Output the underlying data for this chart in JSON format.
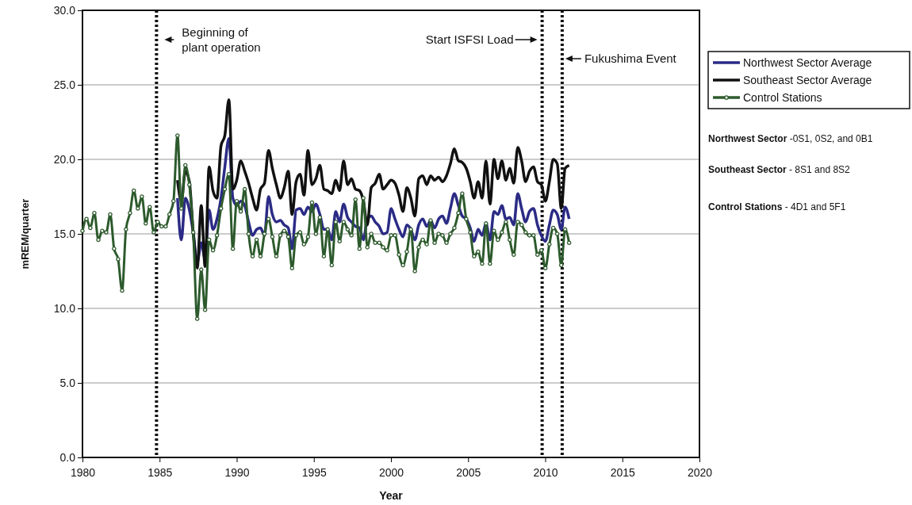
{
  "chart_data": {
    "type": "line",
    "xlabel": "Year",
    "ylabel": "mREM/quarter",
    "xlim": [
      1980,
      2020
    ],
    "xticks": [
      1980,
      1985,
      1990,
      1995,
      2000,
      2005,
      2010,
      2015,
      2020
    ],
    "ylim": [
      0,
      30
    ],
    "yticks": [
      {
        "value": 0,
        "label": "0.0"
      },
      {
        "value": 5,
        "label": "5.0"
      },
      {
        "value": 10,
        "label": "10.0"
      },
      {
        "value": 15,
        "label": "15.0"
      },
      {
        "value": 20,
        "label": "20.0"
      },
      {
        "value": 25,
        "label": "25.0"
      },
      {
        "value": 30,
        "label": "30.0"
      }
    ],
    "grid": "y",
    "legend": "top right",
    "marker": "circle",
    "line_style": "solid",
    "x": [
      1980.0,
      1980.26,
      1980.51,
      1980.77,
      1981.03,
      1981.28,
      1981.54,
      1981.8,
      1982.05,
      1982.31,
      1982.57,
      1982.82,
      1983.08,
      1983.33,
      1983.59,
      1983.85,
      1984.1,
      1984.36,
      1984.62,
      1984.87,
      1985.13,
      1985.39,
      1985.64,
      1985.9,
      1986.16,
      1986.41,
      1986.67,
      1986.93,
      1987.18,
      1987.44,
      1987.7,
      1987.95,
      1988.21,
      1988.46,
      1988.72,
      1988.98,
      1989.23,
      1989.49,
      1989.75,
      1990.0,
      1990.26,
      1990.52,
      1990.77,
      1991.03,
      1991.29,
      1991.54,
      1991.8,
      1992.06,
      1992.31,
      1992.57,
      1992.83,
      1993.08,
      1993.34,
      1993.59,
      1993.85,
      1994.11,
      1994.36,
      1994.62,
      1994.88,
      1995.13,
      1995.39,
      1995.65,
      1995.9,
      1996.16,
      1996.42,
      1996.67,
      1996.93,
      1997.19,
      1997.44,
      1997.7,
      1997.96,
      1998.21,
      1998.47,
      1998.72,
      1998.98,
      1999.24,
      1999.49,
      1999.75,
      2000.01,
      2000.26,
      2000.52,
      2000.78,
      2001.03,
      2001.29,
      2001.55,
      2001.8,
      2002.06,
      2002.32,
      2002.57,
      2002.83,
      2003.09,
      2003.34,
      2003.6,
      2003.85,
      2004.11,
      2004.37,
      2004.62,
      2004.88,
      2005.14,
      2005.39,
      2005.65,
      2005.91,
      2006.16,
      2006.42,
      2006.68,
      2006.93,
      2007.19,
      2007.45,
      2007.7,
      2007.96,
      2008.22,
      2008.47,
      2008.73,
      2008.98,
      2009.24,
      2009.5,
      2009.75,
      2010.01,
      2010.27,
      2010.52,
      2010.78,
      2011.04,
      2011.29,
      2011.55
    ],
    "series": [
      {
        "name": "Northwest Sector Average",
        "color": "#2b2b86",
        "marker": "none",
        "x": [
          1986.16,
          1986.41,
          1986.67,
          1986.93,
          1987.18,
          1987.44,
          1987.7,
          1987.95,
          1988.21,
          1988.46,
          1988.72,
          1988.98,
          1989.23,
          1989.49,
          1989.75,
          1990.0,
          1990.26,
          1990.52,
          1990.77,
          1991.03,
          1991.29,
          1991.54,
          1991.8,
          1992.06,
          1992.31,
          1992.57,
          1992.83,
          1993.08,
          1993.34,
          1993.59,
          1993.85,
          1994.11,
          1994.36,
          1994.62,
          1994.88,
          1995.13,
          1995.39,
          1995.65,
          1995.9,
          1996.16,
          1996.42,
          1996.67,
          1996.93,
          1997.19,
          1997.44,
          1997.7,
          1997.96,
          1998.21,
          1998.47,
          1998.72,
          1998.98,
          1999.24,
          1999.49,
          1999.75,
          2000.01,
          2000.26,
          2000.52,
          2000.78,
          2001.03,
          2001.29,
          2001.55,
          2001.8,
          2002.06,
          2002.32,
          2002.57,
          2002.83,
          2003.09,
          2003.34,
          2003.6,
          2003.85,
          2004.11,
          2004.37,
          2004.62,
          2004.88,
          2005.14,
          2005.39,
          2005.65,
          2005.91,
          2006.16,
          2006.42,
          2006.68,
          2006.93,
          2007.19,
          2007.45,
          2007.7,
          2007.96,
          2008.22,
          2008.47,
          2008.73,
          2008.98,
          2009.24,
          2009.5,
          2009.75,
          2010.01,
          2010.27,
          2010.52,
          2010.78,
          2011.04,
          2011.29,
          2011.55
        ],
        "values": [
          17.4,
          14.6,
          17.4,
          16.6,
          15.1,
          13.1,
          14.4,
          13.3,
          16.6,
          15.3,
          16.0,
          17.4,
          19.5,
          21.4,
          17.4,
          16.9,
          17.2,
          16.9,
          15.8,
          14.9,
          15.3,
          15.4,
          14.9,
          17.5,
          16.3,
          15.8,
          15.9,
          15.6,
          15.4,
          14.0,
          16.6,
          16.7,
          16.3,
          16.8,
          16.5,
          17.0,
          16.3,
          15.3,
          15.3,
          14.6,
          16.5,
          15.8,
          17.0,
          16.1,
          15.8,
          15.5,
          15.4,
          14.6,
          16.0,
          16.2,
          15.8,
          15.5,
          15.0,
          15.1,
          16.7,
          16.0,
          15.3,
          14.8,
          15.6,
          15.3,
          14.6,
          15.6,
          16.0,
          15.5,
          15.9,
          15.4,
          16.0,
          16.2,
          15.7,
          16.7,
          17.7,
          16.9,
          16.2,
          16.0,
          15.4,
          14.5,
          15.3,
          14.9,
          15.7,
          14.6,
          16.5,
          16.3,
          16.9,
          16.0,
          16.1,
          15.6,
          17.7,
          16.7,
          15.8,
          16.5,
          16.7,
          15.6,
          14.9,
          14.5,
          15.6,
          16.6,
          16.3,
          15.3,
          16.8,
          16.0
        ]
      },
      {
        "name": "Southeast Sector Average",
        "color": "#111111",
        "marker": "none",
        "x": [
          1986.16,
          1986.41,
          1986.67,
          1986.93,
          1987.18,
          1987.44,
          1987.7,
          1987.95,
          1988.21,
          1988.46,
          1988.72,
          1988.98,
          1989.23,
          1989.49,
          1989.75,
          1990.0,
          1990.26,
          1990.52,
          1990.77,
          1991.03,
          1991.29,
          1991.54,
          1991.8,
          1992.06,
          1992.31,
          1992.57,
          1992.83,
          1993.08,
          1993.34,
          1993.59,
          1993.85,
          1994.11,
          1994.36,
          1994.62,
          1994.88,
          1995.13,
          1995.39,
          1995.65,
          1995.9,
          1996.16,
          1996.42,
          1996.67,
          1996.93,
          1997.19,
          1997.44,
          1997.7,
          1997.96,
          1998.21,
          1998.47,
          1998.72,
          1998.98,
          1999.24,
          1999.49,
          1999.75,
          2000.01,
          2000.26,
          2000.52,
          2000.78,
          2001.03,
          2001.29,
          2001.55,
          2001.8,
          2002.06,
          2002.32,
          2002.57,
          2002.83,
          2003.09,
          2003.34,
          2003.6,
          2003.85,
          2004.11,
          2004.37,
          2004.62,
          2004.88,
          2005.14,
          2005.39,
          2005.65,
          2005.91,
          2006.16,
          2006.42,
          2006.68,
          2006.93,
          2007.19,
          2007.45,
          2007.7,
          2007.96,
          2008.22,
          2008.47,
          2008.73,
          2008.98,
          2009.24,
          2009.5,
          2009.75,
          2010.01,
          2010.27,
          2010.52,
          2010.78,
          2011.04,
          2011.29,
          2011.55
        ],
        "values": [
          18.6,
          17.2,
          19.2,
          18.5,
          15.1,
          12.7,
          16.9,
          12.8,
          19.5,
          17.9,
          17.4,
          20.9,
          21.6,
          24.0,
          18.0,
          18.6,
          19.9,
          19.2,
          18.4,
          17.4,
          16.6,
          18.0,
          18.4,
          20.6,
          19.4,
          18.3,
          17.4,
          18.1,
          19.2,
          16.3,
          18.5,
          19.0,
          17.6,
          20.6,
          18.3,
          18.7,
          19.6,
          18.0,
          17.9,
          17.7,
          18.6,
          17.9,
          19.9,
          18.3,
          18.7,
          18.0,
          17.9,
          17.2,
          15.6,
          18.1,
          18.4,
          19.0,
          18.0,
          18.3,
          18.6,
          18.4,
          17.6,
          16.5,
          18.1,
          17.4,
          16.2,
          18.7,
          18.9,
          18.3,
          18.9,
          18.6,
          18.8,
          18.5,
          18.9,
          19.7,
          20.7,
          19.9,
          19.8,
          19.4,
          18.5,
          17.4,
          18.5,
          17.4,
          19.9,
          17.0,
          20.0,
          18.7,
          19.9,
          18.6,
          19.4,
          18.4,
          20.8,
          19.9,
          18.5,
          19.2,
          19.5,
          18.5,
          18.3,
          17.2,
          18.5,
          20.0,
          19.7,
          16.7,
          19.4,
          19.6
        ]
      },
      {
        "name": "Control Stations",
        "color": "#2d5a2d",
        "values": [
          15.2,
          16.0,
          15.4,
          16.4,
          14.6,
          15.2,
          15.1,
          16.3,
          14.0,
          13.3,
          11.2,
          15.3,
          16.4,
          17.9,
          16.7,
          17.5,
          15.7,
          16.8,
          15.1,
          15.8,
          15.5,
          15.5,
          16.3,
          17.2,
          21.6,
          16.7,
          19.6,
          18.3,
          15.1,
          9.3,
          12.6,
          9.9,
          14.6,
          13.9,
          14.9,
          16.7,
          18.0,
          19.0,
          14.0,
          17.2,
          16.5,
          18.0,
          15.0,
          13.5,
          14.6,
          13.5,
          15.0,
          16.0,
          14.8,
          13.5,
          14.9,
          15.2,
          14.8,
          12.7,
          14.9,
          15.1,
          14.3,
          14.8,
          17.1,
          15.0,
          16.1,
          13.5,
          15.3,
          12.9,
          15.8,
          14.5,
          15.8,
          15.3,
          14.9,
          17.3,
          14.0,
          17.4,
          14.1,
          15.0,
          14.4,
          14.4,
          14.1,
          13.9,
          14.9,
          14.9,
          13.6,
          12.9,
          13.8,
          15.3,
          12.5,
          14.1,
          14.6,
          14.3,
          15.9,
          14.4,
          15.0,
          14.9,
          14.4,
          15.0,
          15.4,
          16.4,
          17.7,
          16.0,
          15.1,
          13.5,
          13.8,
          13.0,
          15.7,
          13.0,
          15.2,
          14.6,
          15.1,
          15.8,
          14.6,
          13.6,
          15.8,
          15.6,
          15.1,
          14.9,
          14.9,
          13.6,
          13.9,
          12.7,
          14.3,
          15.4,
          15.0,
          12.9,
          15.3,
          14.4
        ]
      }
    ],
    "ref_lines": [
      {
        "axis": "x",
        "value": 1984.8,
        "label": "Beginning of plant operation",
        "line_style": "dotted",
        "color": "#111111"
      },
      {
        "axis": "x",
        "value": 2009.8,
        "label": "Start ISFSI Load",
        "line_style": "dotted",
        "color": "#111111"
      },
      {
        "axis": "x",
        "value": 2011.1,
        "label": "Fukushima Event",
        "line_style": "dotted",
        "color": "#111111"
      }
    ],
    "annotations": [
      "Northwest Sector -0S1, 0S2, and 0B1",
      "Southeast Sector - 8S1 and 8S2",
      "Control Stations - 4D1 and 5F1"
    ]
  }
}
